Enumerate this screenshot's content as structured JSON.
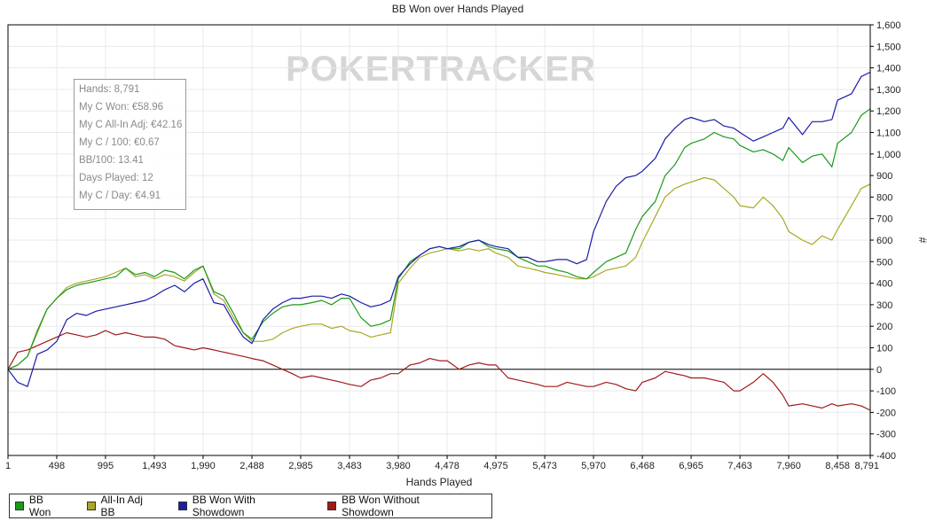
{
  "chart_data": {
    "type": "line",
    "title": "BB Won over Hands Played",
    "xlabel": "Hands Played",
    "ylabel": "#",
    "watermark": "POKERTRACKER",
    "xlim": [
      1,
      8791
    ],
    "ylim": [
      -400,
      1600
    ],
    "x_ticks": [
      "1",
      "498",
      "995",
      "1,493",
      "1,990",
      "2,488",
      "2,985",
      "3,483",
      "3,980",
      "4,478",
      "4,975",
      "5,473",
      "5,970",
      "6,468",
      "6,965",
      "7,463",
      "7,960",
      "8,458",
      "8,791"
    ],
    "y_ticks": [
      "1,600",
      "1,500",
      "1,400",
      "1,300",
      "1,200",
      "1,100",
      "1,000",
      "900",
      "800",
      "700",
      "600",
      "500",
      "400",
      "300",
      "200",
      "100",
      "0",
      "-100",
      "-200",
      "-300",
      "-400"
    ],
    "grid": true,
    "legend_position": "bottom",
    "x": [
      1,
      100,
      200,
      300,
      400,
      498,
      600,
      700,
      800,
      900,
      995,
      1100,
      1200,
      1300,
      1400,
      1493,
      1600,
      1700,
      1800,
      1900,
      1990,
      2100,
      2200,
      2300,
      2400,
      2488,
      2600,
      2700,
      2800,
      2900,
      2985,
      3100,
      3200,
      3300,
      3400,
      3483,
      3600,
      3700,
      3800,
      3900,
      3980,
      4100,
      4200,
      4300,
      4400,
      4478,
      4600,
      4700,
      4800,
      4900,
      4975,
      5100,
      5200,
      5300,
      5400,
      5473,
      5600,
      5700,
      5800,
      5900,
      5970,
      6100,
      6200,
      6300,
      6400,
      6468,
      6600,
      6700,
      6800,
      6900,
      6965,
      7100,
      7200,
      7300,
      7400,
      7463,
      7600,
      7700,
      7800,
      7900,
      7960,
      8100,
      8200,
      8300,
      8400,
      8458,
      8600,
      8700,
      8791
    ],
    "series": [
      {
        "name": "BB Won",
        "color": "#1a9a1a",
        "values": [
          0,
          20,
          60,
          180,
          280,
          330,
          370,
          390,
          400,
          410,
          420,
          430,
          470,
          440,
          450,
          430,
          460,
          450,
          420,
          460,
          480,
          360,
          340,
          260,
          170,
          140,
          220,
          260,
          290,
          300,
          300,
          310,
          320,
          300,
          330,
          330,
          240,
          200,
          210,
          230,
          420,
          500,
          530,
          560,
          570,
          560,
          560,
          590,
          600,
          570,
          560,
          550,
          520,
          500,
          480,
          480,
          460,
          450,
          430,
          420,
          450,
          500,
          520,
          540,
          650,
          710,
          780,
          900,
          950,
          1030,
          1050,
          1070,
          1100,
          1080,
          1070,
          1040,
          1010,
          1020,
          1000,
          970,
          1030,
          960,
          990,
          1000,
          940,
          1050,
          1100,
          1180,
          1210
        ]
      },
      {
        "name": "All-In Adj BB",
        "color": "#a8a826",
        "values": [
          0,
          20,
          60,
          170,
          280,
          330,
          380,
          400,
          410,
          420,
          430,
          450,
          470,
          430,
          440,
          420,
          440,
          430,
          410,
          450,
          480,
          350,
          320,
          240,
          170,
          130,
          130,
          140,
          170,
          190,
          200,
          210,
          210,
          190,
          200,
          180,
          170,
          150,
          160,
          170,
          400,
          470,
          520,
          540,
          550,
          560,
          550,
          560,
          550,
          560,
          540,
          520,
          480,
          470,
          460,
          450,
          440,
          430,
          420,
          420,
          430,
          460,
          470,
          480,
          520,
          590,
          710,
          800,
          840,
          860,
          870,
          890,
          880,
          840,
          800,
          760,
          750,
          800,
          760,
          700,
          640,
          600,
          580,
          620,
          600,
          650,
          760,
          840,
          860
        ]
      },
      {
        "name": "BB Won With Showdown",
        "color": "#1c1ca8",
        "values": [
          0,
          -60,
          -80,
          70,
          90,
          130,
          230,
          260,
          250,
          270,
          280,
          290,
          300,
          310,
          320,
          340,
          370,
          390,
          360,
          400,
          420,
          310,
          300,
          220,
          150,
          120,
          230,
          280,
          310,
          330,
          330,
          340,
          340,
          330,
          350,
          340,
          310,
          290,
          300,
          320,
          430,
          490,
          530,
          560,
          570,
          560,
          570,
          590,
          600,
          580,
          570,
          560,
          520,
          520,
          500,
          500,
          510,
          510,
          490,
          510,
          640,
          780,
          850,
          890,
          900,
          920,
          980,
          1070,
          1120,
          1160,
          1170,
          1150,
          1160,
          1130,
          1120,
          1100,
          1060,
          1080,
          1100,
          1120,
          1170,
          1090,
          1150,
          1150,
          1160,
          1250,
          1280,
          1360,
          1380
        ]
      },
      {
        "name": "BB Won Without Showdown",
        "color": "#a21818",
        "values": [
          0,
          80,
          90,
          110,
          130,
          150,
          170,
          160,
          150,
          160,
          180,
          160,
          170,
          160,
          150,
          150,
          140,
          110,
          100,
          90,
          100,
          90,
          80,
          70,
          60,
          50,
          40,
          20,
          0,
          -20,
          -40,
          -30,
          -40,
          -50,
          -60,
          -70,
          -80,
          -50,
          -40,
          -20,
          -20,
          20,
          30,
          50,
          40,
          40,
          0,
          20,
          30,
          20,
          20,
          -40,
          -50,
          -60,
          -70,
          -80,
          -80,
          -60,
          -70,
          -80,
          -80,
          -60,
          -70,
          -90,
          -100,
          -60,
          -40,
          -10,
          -20,
          -30,
          -40,
          -40,
          -50,
          -60,
          -100,
          -100,
          -60,
          -20,
          -60,
          -120,
          -170,
          -160,
          -170,
          -180,
          -160,
          -170,
          -160,
          -170,
          -190
        ]
      }
    ]
  },
  "stats": [
    "Hands: 8,791",
    "My C Won: €58.96",
    "My C All-In Adj: €42.16",
    "My C / 100: €0.67",
    "BB/100: 13.41",
    "Days Played: 12",
    "My C / Day: €4.91"
  ],
  "legend": [
    {
      "label": "BB Won",
      "color": "#1a9a1a"
    },
    {
      "label": "All-In Adj BB",
      "color": "#a8a826"
    },
    {
      "label": "BB Won With Showdown",
      "color": "#1c1ca8"
    },
    {
      "label": "BB Won Without Showdown",
      "color": "#a21818"
    }
  ]
}
